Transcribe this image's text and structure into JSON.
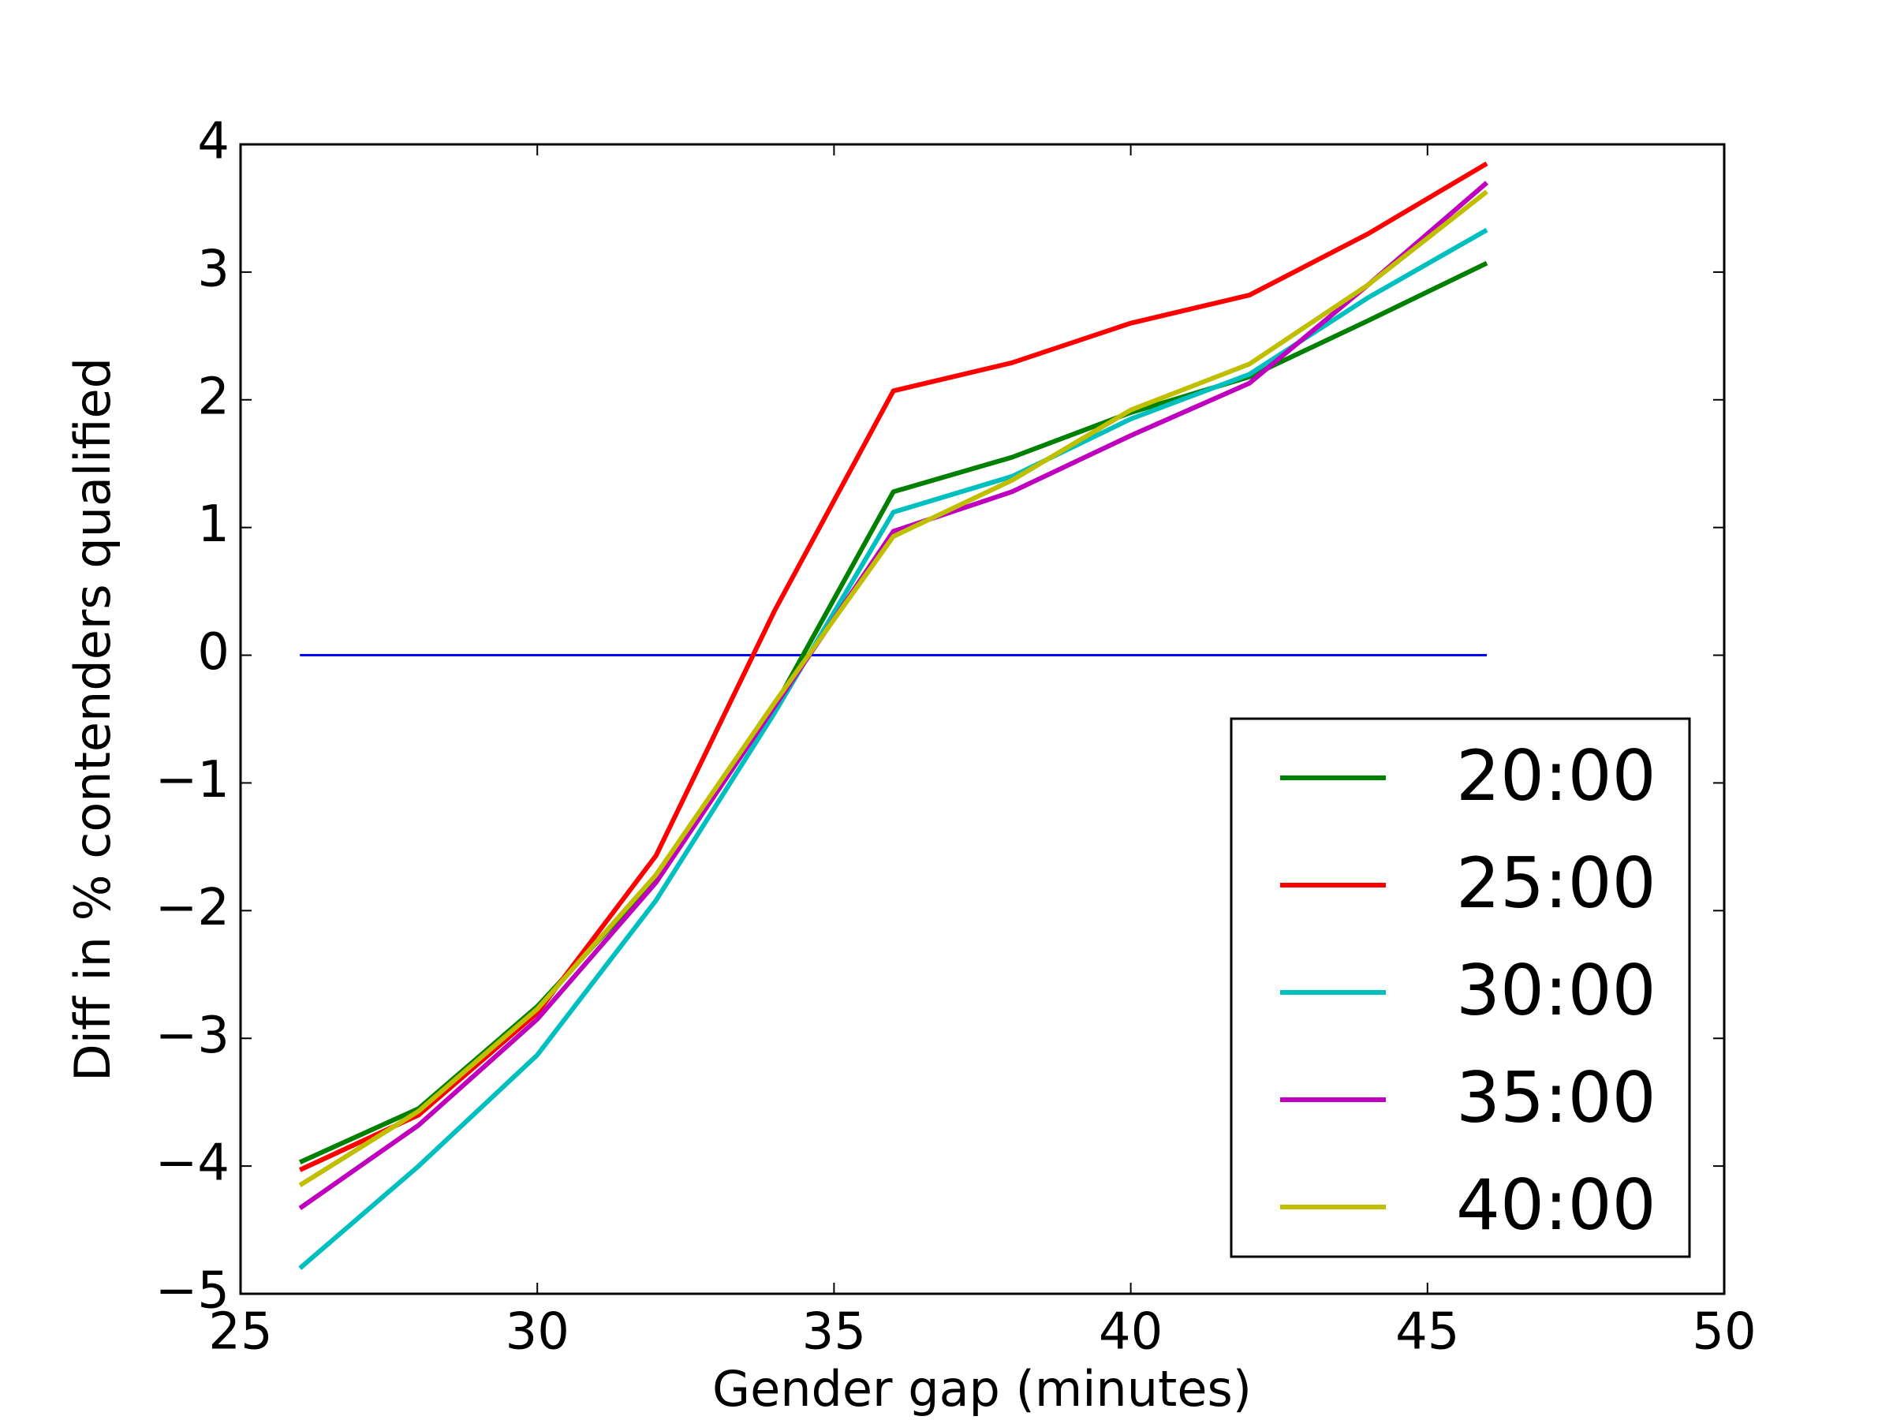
{
  "chart_data": {
    "type": "line",
    "xlabel": "Gender gap (minutes)",
    "ylabel": "Diff in % contenders qualified",
    "x": [
      26,
      28,
      30,
      32,
      34,
      36,
      38,
      40,
      42,
      44,
      46
    ],
    "series": [
      {
        "color": "#0000ff",
        "values": [
          0,
          0,
          0,
          0,
          0,
          0,
          0,
          0,
          0,
          0,
          0
        ]
      },
      {
        "name": "20:00",
        "color": "#008000",
        "values": [
          -3.97,
          -3.55,
          -2.75,
          -1.75,
          -0.4,
          1.28,
          1.55,
          1.9,
          2.18,
          2.62,
          3.07
        ]
      },
      {
        "name": "25:00",
        "color": "#ff0000",
        "values": [
          -4.03,
          -3.6,
          -2.8,
          -1.57,
          0.35,
          2.07,
          2.29,
          2.6,
          2.82,
          3.3,
          3.85
        ]
      },
      {
        "name": "30:00",
        "color": "#00bfbf",
        "values": [
          -4.8,
          -4.0,
          -3.13,
          -1.92,
          -0.45,
          1.12,
          1.4,
          1.85,
          2.2,
          2.8,
          3.33
        ]
      },
      {
        "name": "35:00",
        "color": "#bf00bf",
        "values": [
          -4.33,
          -3.68,
          -2.85,
          -1.78,
          -0.4,
          0.97,
          1.28,
          1.72,
          2.13,
          2.9,
          3.7
        ]
      },
      {
        "name": "40:00",
        "color": "#bfbf00",
        "values": [
          -4.15,
          -3.57,
          -2.77,
          -1.72,
          -0.37,
          0.93,
          1.37,
          1.92,
          2.28,
          2.9,
          3.63
        ]
      }
    ],
    "xlim": [
      25,
      50
    ],
    "xticks": [
      25,
      30,
      35,
      40,
      45,
      50
    ],
    "ylim": [
      -5,
      4
    ],
    "yticks": [
      {
        "value": -5,
        "label": "−5"
      },
      {
        "value": -4,
        "label": "−4"
      },
      {
        "value": -3,
        "label": "−3"
      },
      {
        "value": -2,
        "label": "−2"
      },
      {
        "value": -1,
        "label": "−1"
      },
      0,
      1,
      2,
      3,
      4
    ],
    "grid": false,
    "legend": "lower right"
  }
}
